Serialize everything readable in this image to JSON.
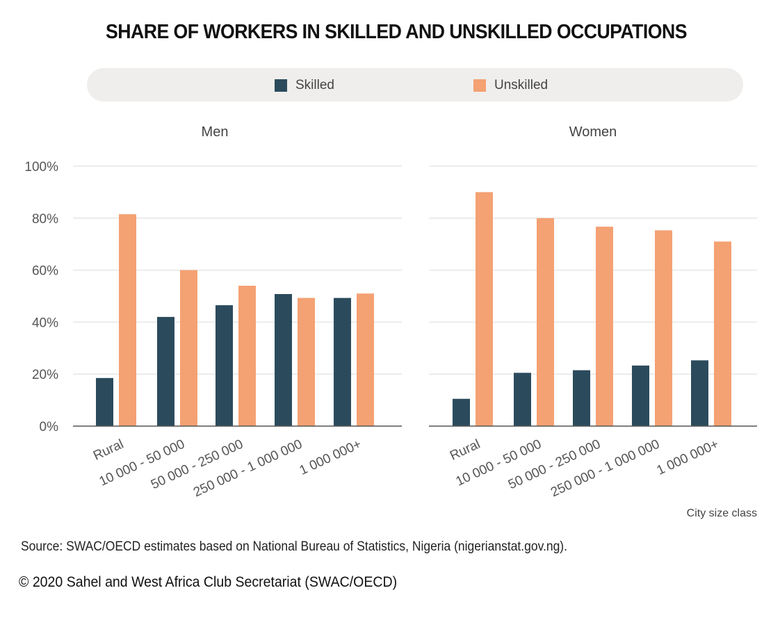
{
  "title": "SHARE OF WORKERS IN SKILLED AND UNSKILLED OCCUPATIONS",
  "legend": {
    "skilled": "Skilled",
    "unskilled": "Unskilled"
  },
  "colors": {
    "skilled": "#2b4b5c",
    "unskilled": "#f4a173",
    "grid": "#e6e6e6",
    "axis": "#555555"
  },
  "chart_data": {
    "type": "bar",
    "ylim": [
      0,
      100
    ],
    "yticks": [
      "0%",
      "20%",
      "40%",
      "60%",
      "80%",
      "100%"
    ],
    "xlabel": "City size class",
    "categories": [
      "Rural",
      "10 000 - 50 000",
      "50 000 - 250 000",
      "250 000 - 1 000 000",
      "1 000 000+"
    ],
    "panels": [
      {
        "title": "Men",
        "series": [
          {
            "name": "Skilled",
            "values": [
              18.5,
              42,
              46.5,
              50.8,
              49.3
            ]
          },
          {
            "name": "Unskilled",
            "values": [
              81.5,
              60,
              54,
              49.3,
              51
            ]
          }
        ]
      },
      {
        "title": "Women",
        "series": [
          {
            "name": "Skilled",
            "values": [
              10.5,
              20.5,
              21.5,
              23.3,
              25.3
            ]
          },
          {
            "name": "Unskilled",
            "values": [
              90,
              80,
              76.7,
              75.3,
              71
            ]
          }
        ]
      }
    ]
  },
  "footer": {
    "source": "Source: SWAC/OECD estimates based on National Bureau of Statistics, Nigeria (nigerianstat.gov.ng).",
    "copyright": "© 2020 Sahel and West Africa Club Secretariat (SWAC/OECD)"
  }
}
